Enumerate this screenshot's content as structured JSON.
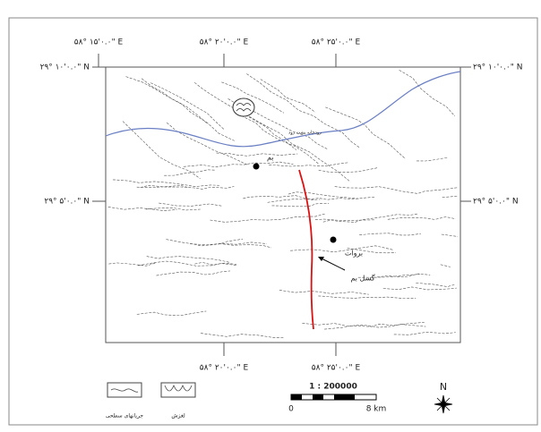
{
  "coordinates": {
    "top": [
      "۵۸° ۱۵'۰.۰\" E",
      "۵۸° ۲۰'۰.۰\" E",
      "۵۸° ۲۵'۰.۰\" E"
    ],
    "bottom": [
      "۵۸° ۲۰'۰.۰\" E",
      "۵۸° ۲۵'۰.۰\" E"
    ],
    "left": [
      "۲۹° ۱۰'۰.۰\" N",
      "۲۹° ۵'۰.۰\" N"
    ],
    "right": [
      "۲۹° ۱۰'۰.۰\" N",
      "۲۹° ۵'۰.۰\" N"
    ]
  },
  "places": {
    "bam": "بم",
    "baravat": "بروات",
    "fault": "گسل بم",
    "river": "رودخانه پشت رود"
  },
  "legend": {
    "drainage": "جریانهای سطحی",
    "landslide": "لغزش"
  },
  "scale": {
    "ratio": "1 : 200000",
    "start": "0",
    "end": "8 km"
  },
  "north": "N"
}
